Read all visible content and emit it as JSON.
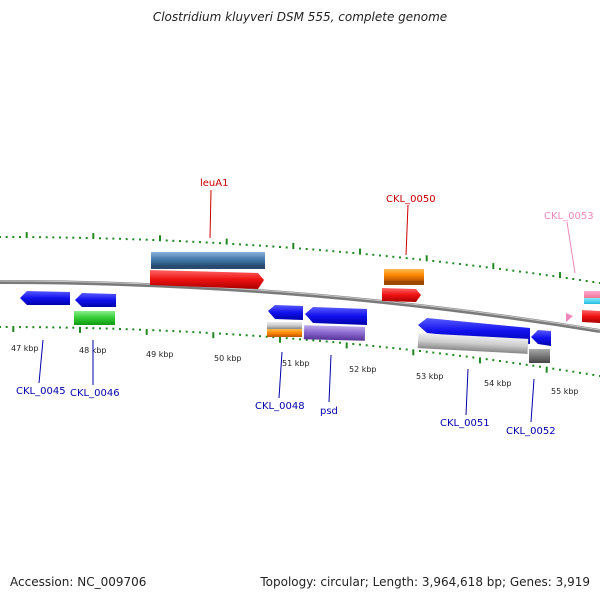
{
  "title": "Clostridium kluyveri DSM 555, complete genome",
  "footer": {
    "accession": "Accession: NC_009706",
    "summary": "Topology: circular; Length: 3,964,618 bp; Genes: 3,919"
  },
  "scale_labels": [
    "47 kbp",
    "48 kbp",
    "49 kbp",
    "50 kbp",
    "51 kbp",
    "52 kbp",
    "53 kbp",
    "54 kbp",
    "55 kbp"
  ],
  "gene_labels": [
    {
      "text": "leuA1",
      "color": "#cc0000"
    },
    {
      "text": "CKL_0050",
      "color": "#cc0000"
    },
    {
      "text": "CKL_0053",
      "color": "#ee88bb"
    },
    {
      "text": "CKL_0045",
      "color": "#0000aa"
    },
    {
      "text": "CKL_0046",
      "color": "#0000aa"
    },
    {
      "text": "CKL_0048",
      "color": "#0000aa"
    },
    {
      "text": "psd",
      "color": "#0000aa"
    },
    {
      "text": "CKL_0051",
      "color": "#0000aa"
    },
    {
      "text": "CKL_0052",
      "color": "#0000aa"
    }
  ],
  "colors": {
    "backbone": "#8a8a8a",
    "tick": "#228822",
    "forward_gene": "#ee1111",
    "reverse_gene": "#1111ee",
    "steelblue": "#4a7fb0",
    "orange": "#ff8800",
    "green": "#33cc33",
    "lavender": "#8866cc",
    "gray": "#bbbbbb",
    "darkgray": "#777777"
  }
}
